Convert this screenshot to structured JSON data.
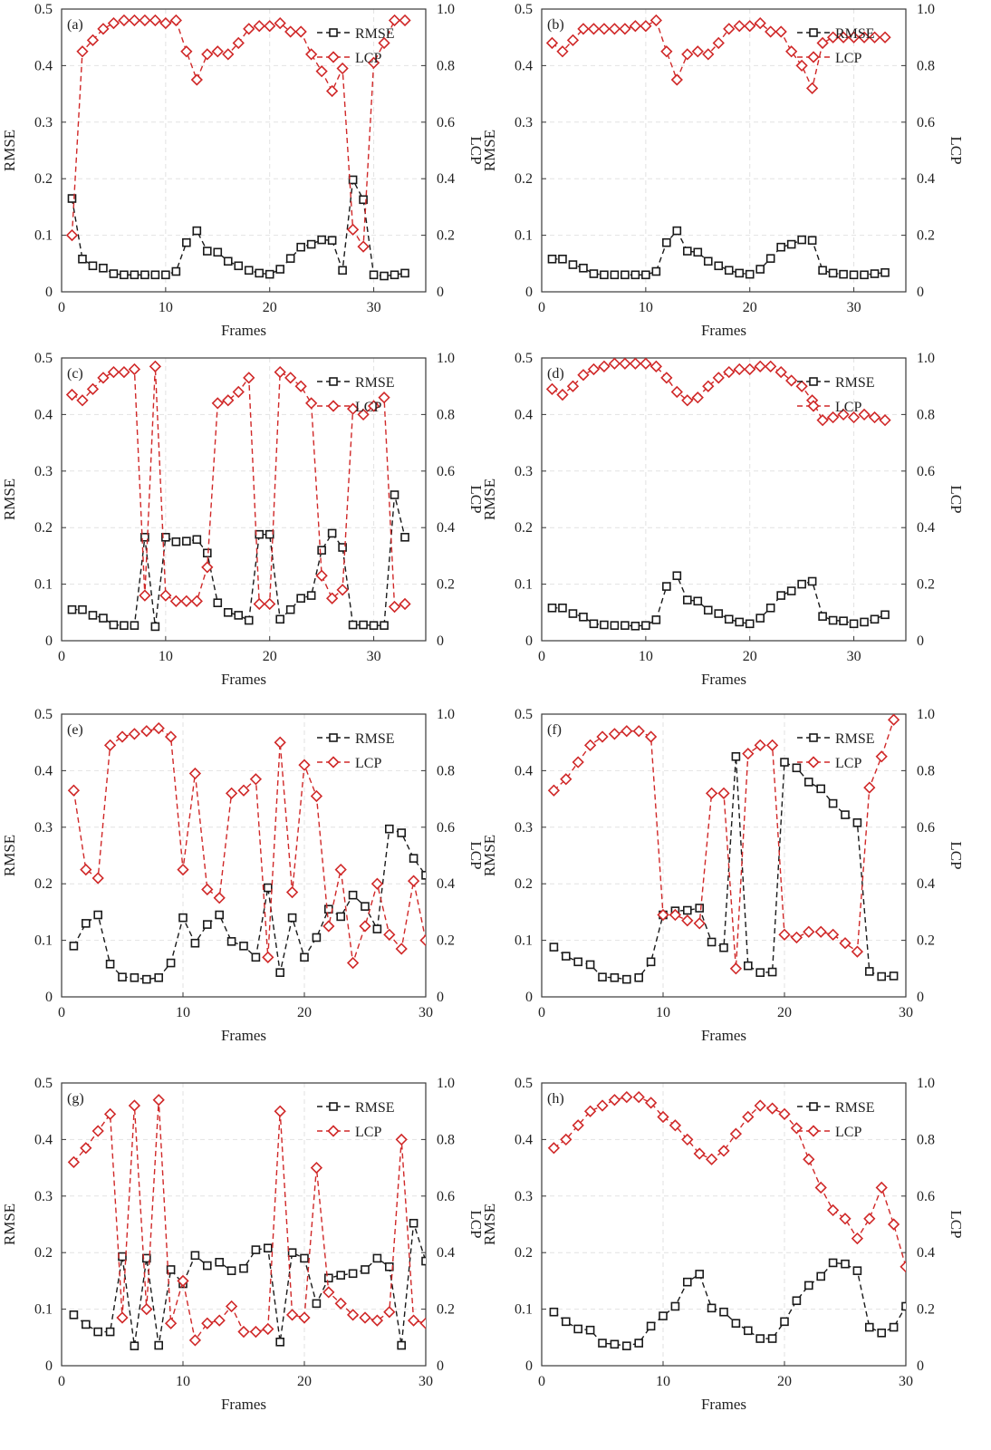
{
  "colors": {
    "rmse": "#1a1a1a",
    "lcp": "#d02828",
    "grid": "#e2e2e2"
  },
  "chart_data": [
    {
      "type": "line",
      "label": "(a)",
      "xlabel": "Frames",
      "ylabel": "RMSE",
      "y2label": "LCP",
      "xlim": [
        0,
        35
      ],
      "xticks": [
        0,
        10,
        20,
        30
      ],
      "ylim": [
        0,
        0.5
      ],
      "yticks": [
        "0",
        "0.1",
        "0.2",
        "0.3",
        "0.4",
        "0.5"
      ],
      "y2lim": [
        0,
        1.0
      ],
      "y2ticks": [
        "0",
        "0.2",
        "0.4",
        "0.6",
        "0.8",
        "1.0"
      ],
      "grid": true,
      "legend": "top-right",
      "x": [
        1,
        2,
        3,
        4,
        5,
        6,
        7,
        8,
        9,
        10,
        11,
        12,
        13,
        14,
        15,
        16,
        17,
        18,
        19,
        20,
        21,
        22,
        23,
        24,
        25,
        26,
        27,
        28,
        29,
        30,
        31,
        32,
        33
      ],
      "series": [
        {
          "name": "RMSE",
          "axis": "left",
          "values": [
            0.165,
            0.058,
            0.046,
            0.042,
            0.032,
            0.03,
            0.03,
            0.03,
            0.03,
            0.03,
            0.036,
            0.087,
            0.108,
            0.072,
            0.07,
            0.054,
            0.046,
            0.038,
            0.033,
            0.031,
            0.04,
            0.059,
            0.079,
            0.084,
            0.092,
            0.091,
            0.038,
            0.198,
            0.163,
            0.03,
            0.028,
            0.03,
            0.033
          ]
        },
        {
          "name": "LCP",
          "axis": "right",
          "values": [
            0.2,
            0.85,
            0.89,
            0.93,
            0.95,
            0.96,
            0.96,
            0.96,
            0.96,
            0.95,
            0.96,
            0.85,
            0.75,
            0.84,
            0.85,
            0.84,
            0.88,
            0.93,
            0.94,
            0.94,
            0.95,
            0.92,
            0.92,
            0.84,
            0.78,
            0.71,
            0.79,
            0.22,
            0.16,
            0.81,
            0.88,
            0.96,
            0.96
          ]
        }
      ]
    },
    {
      "type": "line",
      "label": "(b)",
      "xlabel": "Frames",
      "ylabel": "RMSE",
      "y2label": "LCP",
      "xlim": [
        0,
        35
      ],
      "xticks": [
        0,
        10,
        20,
        30
      ],
      "ylim": [
        0,
        0.5
      ],
      "yticks": [
        "0",
        "0.1",
        "0.2",
        "0.3",
        "0.4",
        "0.5"
      ],
      "y2lim": [
        0,
        1.0
      ],
      "y2ticks": [
        "0",
        "0.2",
        "0.4",
        "0.6",
        "0.8",
        "1.0"
      ],
      "grid": true,
      "legend": "top-right",
      "x": [
        1,
        2,
        3,
        4,
        5,
        6,
        7,
        8,
        9,
        10,
        11,
        12,
        13,
        14,
        15,
        16,
        17,
        18,
        19,
        20,
        21,
        22,
        23,
        24,
        25,
        26,
        27,
        28,
        29,
        30,
        31,
        32,
        33
      ],
      "series": [
        {
          "name": "RMSE",
          "axis": "left",
          "values": [
            0.058,
            0.058,
            0.048,
            0.042,
            0.032,
            0.03,
            0.03,
            0.03,
            0.03,
            0.03,
            0.036,
            0.087,
            0.108,
            0.072,
            0.07,
            0.054,
            0.046,
            0.038,
            0.033,
            0.031,
            0.04,
            0.059,
            0.079,
            0.084,
            0.092,
            0.091,
            0.038,
            0.033,
            0.031,
            0.03,
            0.03,
            0.032,
            0.034
          ]
        },
        {
          "name": "LCP",
          "axis": "right",
          "values": [
            0.88,
            0.85,
            0.89,
            0.93,
            0.93,
            0.93,
            0.93,
            0.93,
            0.94,
            0.94,
            0.96,
            0.85,
            0.75,
            0.84,
            0.85,
            0.84,
            0.88,
            0.93,
            0.94,
            0.94,
            0.95,
            0.92,
            0.92,
            0.85,
            0.8,
            0.72,
            0.88,
            0.9,
            0.9,
            0.9,
            0.9,
            0.9,
            0.9
          ]
        }
      ]
    },
    {
      "type": "line",
      "label": "(c)",
      "xlabel": "Frames",
      "ylabel": "RMSE",
      "y2label": "LCP",
      "xlim": [
        0,
        35
      ],
      "xticks": [
        0,
        10,
        20,
        30
      ],
      "ylim": [
        0,
        0.5
      ],
      "yticks": [
        "0",
        "0.1",
        "0.2",
        "0.3",
        "0.4",
        "0.5"
      ],
      "y2lim": [
        0,
        1.0
      ],
      "y2ticks": [
        "0",
        "0.2",
        "0.4",
        "0.6",
        "0.8",
        "1.0"
      ],
      "grid": true,
      "legend": "top-right",
      "x": [
        1,
        2,
        3,
        4,
        5,
        6,
        7,
        8,
        9,
        10,
        11,
        12,
        13,
        14,
        15,
        16,
        17,
        18,
        19,
        20,
        21,
        22,
        23,
        24,
        25,
        26,
        27,
        28,
        29,
        30,
        31,
        32,
        33
      ],
      "series": [
        {
          "name": "RMSE",
          "axis": "left",
          "values": [
            0.055,
            0.055,
            0.045,
            0.04,
            0.028,
            0.027,
            0.027,
            0.183,
            0.025,
            0.183,
            0.175,
            0.176,
            0.179,
            0.155,
            0.067,
            0.05,
            0.045,
            0.036,
            0.188,
            0.188,
            0.038,
            0.055,
            0.075,
            0.08,
            0.16,
            0.19,
            0.165,
            0.028,
            0.028,
            0.027,
            0.027,
            0.258,
            0.183
          ]
        },
        {
          "name": "LCP",
          "axis": "right",
          "values": [
            0.87,
            0.85,
            0.89,
            0.93,
            0.95,
            0.95,
            0.96,
            0.16,
            0.97,
            0.16,
            0.14,
            0.14,
            0.14,
            0.26,
            0.84,
            0.85,
            0.88,
            0.93,
            0.13,
            0.13,
            0.95,
            0.93,
            0.9,
            0.84,
            0.23,
            0.15,
            0.18,
            0.82,
            0.8,
            0.83,
            0.86,
            0.12,
            0.13
          ]
        }
      ]
    },
    {
      "type": "line",
      "label": "(d)",
      "xlabel": "Frames",
      "ylabel": "RMSE",
      "y2label": "LCP",
      "xlim": [
        0,
        35
      ],
      "xticks": [
        0,
        10,
        20,
        30
      ],
      "ylim": [
        0,
        0.5
      ],
      "yticks": [
        "0",
        "0.1",
        "0.2",
        "0.3",
        "0.4",
        "0.5"
      ],
      "y2lim": [
        0,
        1.0
      ],
      "y2ticks": [
        "0",
        "0.2",
        "0.4",
        "0.6",
        "0.8",
        "1.0"
      ],
      "grid": true,
      "legend": "top-right",
      "x": [
        1,
        2,
        3,
        4,
        5,
        6,
        7,
        8,
        9,
        10,
        11,
        12,
        13,
        14,
        15,
        16,
        17,
        18,
        19,
        20,
        21,
        22,
        23,
        24,
        25,
        26,
        27,
        28,
        29,
        30,
        31,
        32,
        33
      ],
      "series": [
        {
          "name": "RMSE",
          "axis": "left",
          "values": [
            0.058,
            0.058,
            0.048,
            0.042,
            0.03,
            0.028,
            0.027,
            0.027,
            0.026,
            0.027,
            0.037,
            0.096,
            0.115,
            0.072,
            0.07,
            0.054,
            0.048,
            0.038,
            0.033,
            0.03,
            0.04,
            0.058,
            0.08,
            0.088,
            0.1,
            0.105,
            0.043,
            0.036,
            0.035,
            0.03,
            0.033,
            0.038,
            0.046
          ]
        },
        {
          "name": "LCP",
          "axis": "right",
          "values": [
            0.89,
            0.87,
            0.9,
            0.94,
            0.96,
            0.97,
            0.98,
            0.98,
            0.98,
            0.98,
            0.97,
            0.93,
            0.88,
            0.85,
            0.86,
            0.9,
            0.93,
            0.95,
            0.96,
            0.96,
            0.97,
            0.97,
            0.95,
            0.92,
            0.9,
            0.85,
            0.78,
            0.79,
            0.8,
            0.79,
            0.8,
            0.79,
            0.78
          ]
        }
      ]
    },
    {
      "type": "line",
      "label": "(e)",
      "xlabel": "Frames",
      "ylabel": "RMSE",
      "y2label": "LCP",
      "xlim": [
        0,
        30
      ],
      "xticks": [
        0,
        10,
        20,
        30
      ],
      "ylim": [
        0,
        0.5
      ],
      "yticks": [
        "0",
        "0.1",
        "0.2",
        "0.3",
        "0.4",
        "0.5"
      ],
      "y2lim": [
        0,
        1.0
      ],
      "y2ticks": [
        "0",
        "0.2",
        "0.4",
        "0.6",
        "0.8",
        "1.0"
      ],
      "grid": true,
      "legend": "top-right",
      "x": [
        1,
        2,
        3,
        4,
        5,
        6,
        7,
        8,
        9,
        10,
        11,
        12,
        13,
        14,
        15,
        16,
        17,
        18,
        19,
        20,
        21,
        22,
        23,
        24,
        25,
        26,
        27,
        28,
        29,
        30
      ],
      "series": [
        {
          "name": "RMSE",
          "axis": "left",
          "values": [
            0.09,
            0.13,
            0.145,
            0.058,
            0.035,
            0.034,
            0.031,
            0.034,
            0.06,
            0.14,
            0.095,
            0.128,
            0.145,
            0.098,
            0.09,
            0.07,
            0.193,
            0.043,
            0.14,
            0.07,
            0.105,
            0.155,
            0.142,
            0.18,
            0.16,
            0.12,
            0.297,
            0.29,
            0.245,
            0.215
          ]
        },
        {
          "name": "LCP",
          "axis": "right",
          "values": [
            0.73,
            0.45,
            0.42,
            0.89,
            0.92,
            0.93,
            0.94,
            0.95,
            0.92,
            0.45,
            0.79,
            0.38,
            0.35,
            0.72,
            0.73,
            0.77,
            0.14,
            0.9,
            0.37,
            0.82,
            0.71,
            0.25,
            0.45,
            0.12,
            0.25,
            0.4,
            0.22,
            0.17,
            0.41,
            0.2
          ]
        }
      ]
    },
    {
      "type": "line",
      "label": "(f)",
      "xlabel": "Frames",
      "ylabel": "RMSE",
      "y2label": "LCP",
      "xlim": [
        0,
        30
      ],
      "xticks": [
        0,
        10,
        20,
        30
      ],
      "ylim": [
        0,
        0.5
      ],
      "yticks": [
        "0",
        "0.1",
        "0.2",
        "0.3",
        "0.4",
        "0.5"
      ],
      "y2lim": [
        0,
        1.0
      ],
      "y2ticks": [
        "0",
        "0.2",
        "0.4",
        "0.6",
        "0.8",
        "1.0"
      ],
      "grid": true,
      "legend": "top-right",
      "x": [
        1,
        2,
        3,
        4,
        5,
        6,
        7,
        8,
        9,
        10,
        11,
        12,
        13,
        14,
        15,
        16,
        17,
        18,
        19,
        20,
        21,
        22,
        23,
        24,
        25,
        26,
        27,
        28,
        29
      ],
      "series": [
        {
          "name": "RMSE",
          "axis": "left",
          "values": [
            0.088,
            0.072,
            0.062,
            0.057,
            0.035,
            0.034,
            0.031,
            0.034,
            0.062,
            0.145,
            0.152,
            0.153,
            0.157,
            0.097,
            0.087,
            0.425,
            0.055,
            0.043,
            0.044,
            0.415,
            0.405,
            0.38,
            0.368,
            0.342,
            0.322,
            0.308,
            0.045,
            0.036,
            0.037
          ]
        },
        {
          "name": "LCP",
          "axis": "right",
          "values": [
            0.73,
            0.77,
            0.83,
            0.89,
            0.92,
            0.93,
            0.94,
            0.94,
            0.92,
            0.29,
            0.29,
            0.27,
            0.26,
            0.72,
            0.72,
            0.1,
            0.86,
            0.89,
            0.89,
            0.22,
            0.21,
            0.23,
            0.23,
            0.22,
            0.19,
            0.16,
            0.74,
            0.85,
            0.98
          ]
        }
      ]
    },
    {
      "type": "line",
      "label": "(g)",
      "xlabel": "Frames",
      "ylabel": "RMSE",
      "y2label": "LCP",
      "xlim": [
        0,
        30
      ],
      "xticks": [
        0,
        10,
        20,
        30
      ],
      "ylim": [
        0,
        0.5
      ],
      "yticks": [
        "0",
        "0.1",
        "0.2",
        "0.3",
        "0.4",
        "0.5"
      ],
      "y2lim": [
        0,
        1.0
      ],
      "y2ticks": [
        "0",
        "0.2",
        "0.4",
        "0.6",
        "0.8",
        "1.0"
      ],
      "grid": true,
      "legend": "top-right",
      "x": [
        1,
        2,
        3,
        4,
        5,
        6,
        7,
        8,
        9,
        10,
        11,
        12,
        13,
        14,
        15,
        16,
        17,
        18,
        19,
        20,
        21,
        22,
        23,
        24,
        25,
        26,
        27,
        28,
        29,
        30
      ],
      "series": [
        {
          "name": "RMSE",
          "axis": "left",
          "values": [
            0.09,
            0.073,
            0.06,
            0.06,
            0.193,
            0.035,
            0.19,
            0.036,
            0.17,
            0.145,
            0.195,
            0.177,
            0.183,
            0.168,
            0.172,
            0.205,
            0.208,
            0.042,
            0.2,
            0.19,
            0.11,
            0.155,
            0.16,
            0.163,
            0.17,
            0.19,
            0.175,
            0.036,
            0.252,
            0.185
          ]
        },
        {
          "name": "LCP",
          "axis": "right",
          "values": [
            0.72,
            0.77,
            0.83,
            0.89,
            0.17,
            0.92,
            0.2,
            0.94,
            0.15,
            0.3,
            0.09,
            0.15,
            0.16,
            0.21,
            0.12,
            0.12,
            0.13,
            0.9,
            0.18,
            0.17,
            0.7,
            0.26,
            0.22,
            0.18,
            0.17,
            0.16,
            0.19,
            0.8,
            0.16,
            0.15
          ]
        }
      ]
    },
    {
      "type": "line",
      "label": "(h)",
      "xlabel": "Frames",
      "ylabel": "RMSE",
      "y2label": "LCP",
      "xlim": [
        0,
        30
      ],
      "xticks": [
        0,
        10,
        20,
        30
      ],
      "ylim": [
        0,
        0.5
      ],
      "yticks": [
        "0",
        "0.1",
        "0.2",
        "0.3",
        "0.4",
        "0.5"
      ],
      "y2lim": [
        0,
        1.0
      ],
      "y2ticks": [
        "0",
        "0.2",
        "0.4",
        "0.6",
        "0.8",
        "1.0"
      ],
      "grid": true,
      "legend": "top-right",
      "x": [
        1,
        2,
        3,
        4,
        5,
        6,
        7,
        8,
        9,
        10,
        11,
        12,
        13,
        14,
        15,
        16,
        17,
        18,
        19,
        20,
        21,
        22,
        23,
        24,
        25,
        26,
        27,
        28,
        29,
        30
      ],
      "series": [
        {
          "name": "RMSE",
          "axis": "left",
          "values": [
            0.095,
            0.078,
            0.065,
            0.063,
            0.04,
            0.038,
            0.035,
            0.04,
            0.07,
            0.088,
            0.105,
            0.148,
            0.162,
            0.102,
            0.095,
            0.075,
            0.062,
            0.048,
            0.048,
            0.078,
            0.115,
            0.142,
            0.158,
            0.182,
            0.18,
            0.168,
            0.068,
            0.058,
            0.068,
            0.105
          ]
        },
        {
          "name": "LCP",
          "axis": "right",
          "values": [
            0.77,
            0.8,
            0.85,
            0.9,
            0.92,
            0.94,
            0.95,
            0.95,
            0.93,
            0.88,
            0.85,
            0.8,
            0.75,
            0.73,
            0.76,
            0.82,
            0.88,
            0.92,
            0.91,
            0.89,
            0.84,
            0.73,
            0.63,
            0.55,
            0.52,
            0.45,
            0.52,
            0.63,
            0.5,
            0.35
          ]
        }
      ]
    }
  ]
}
